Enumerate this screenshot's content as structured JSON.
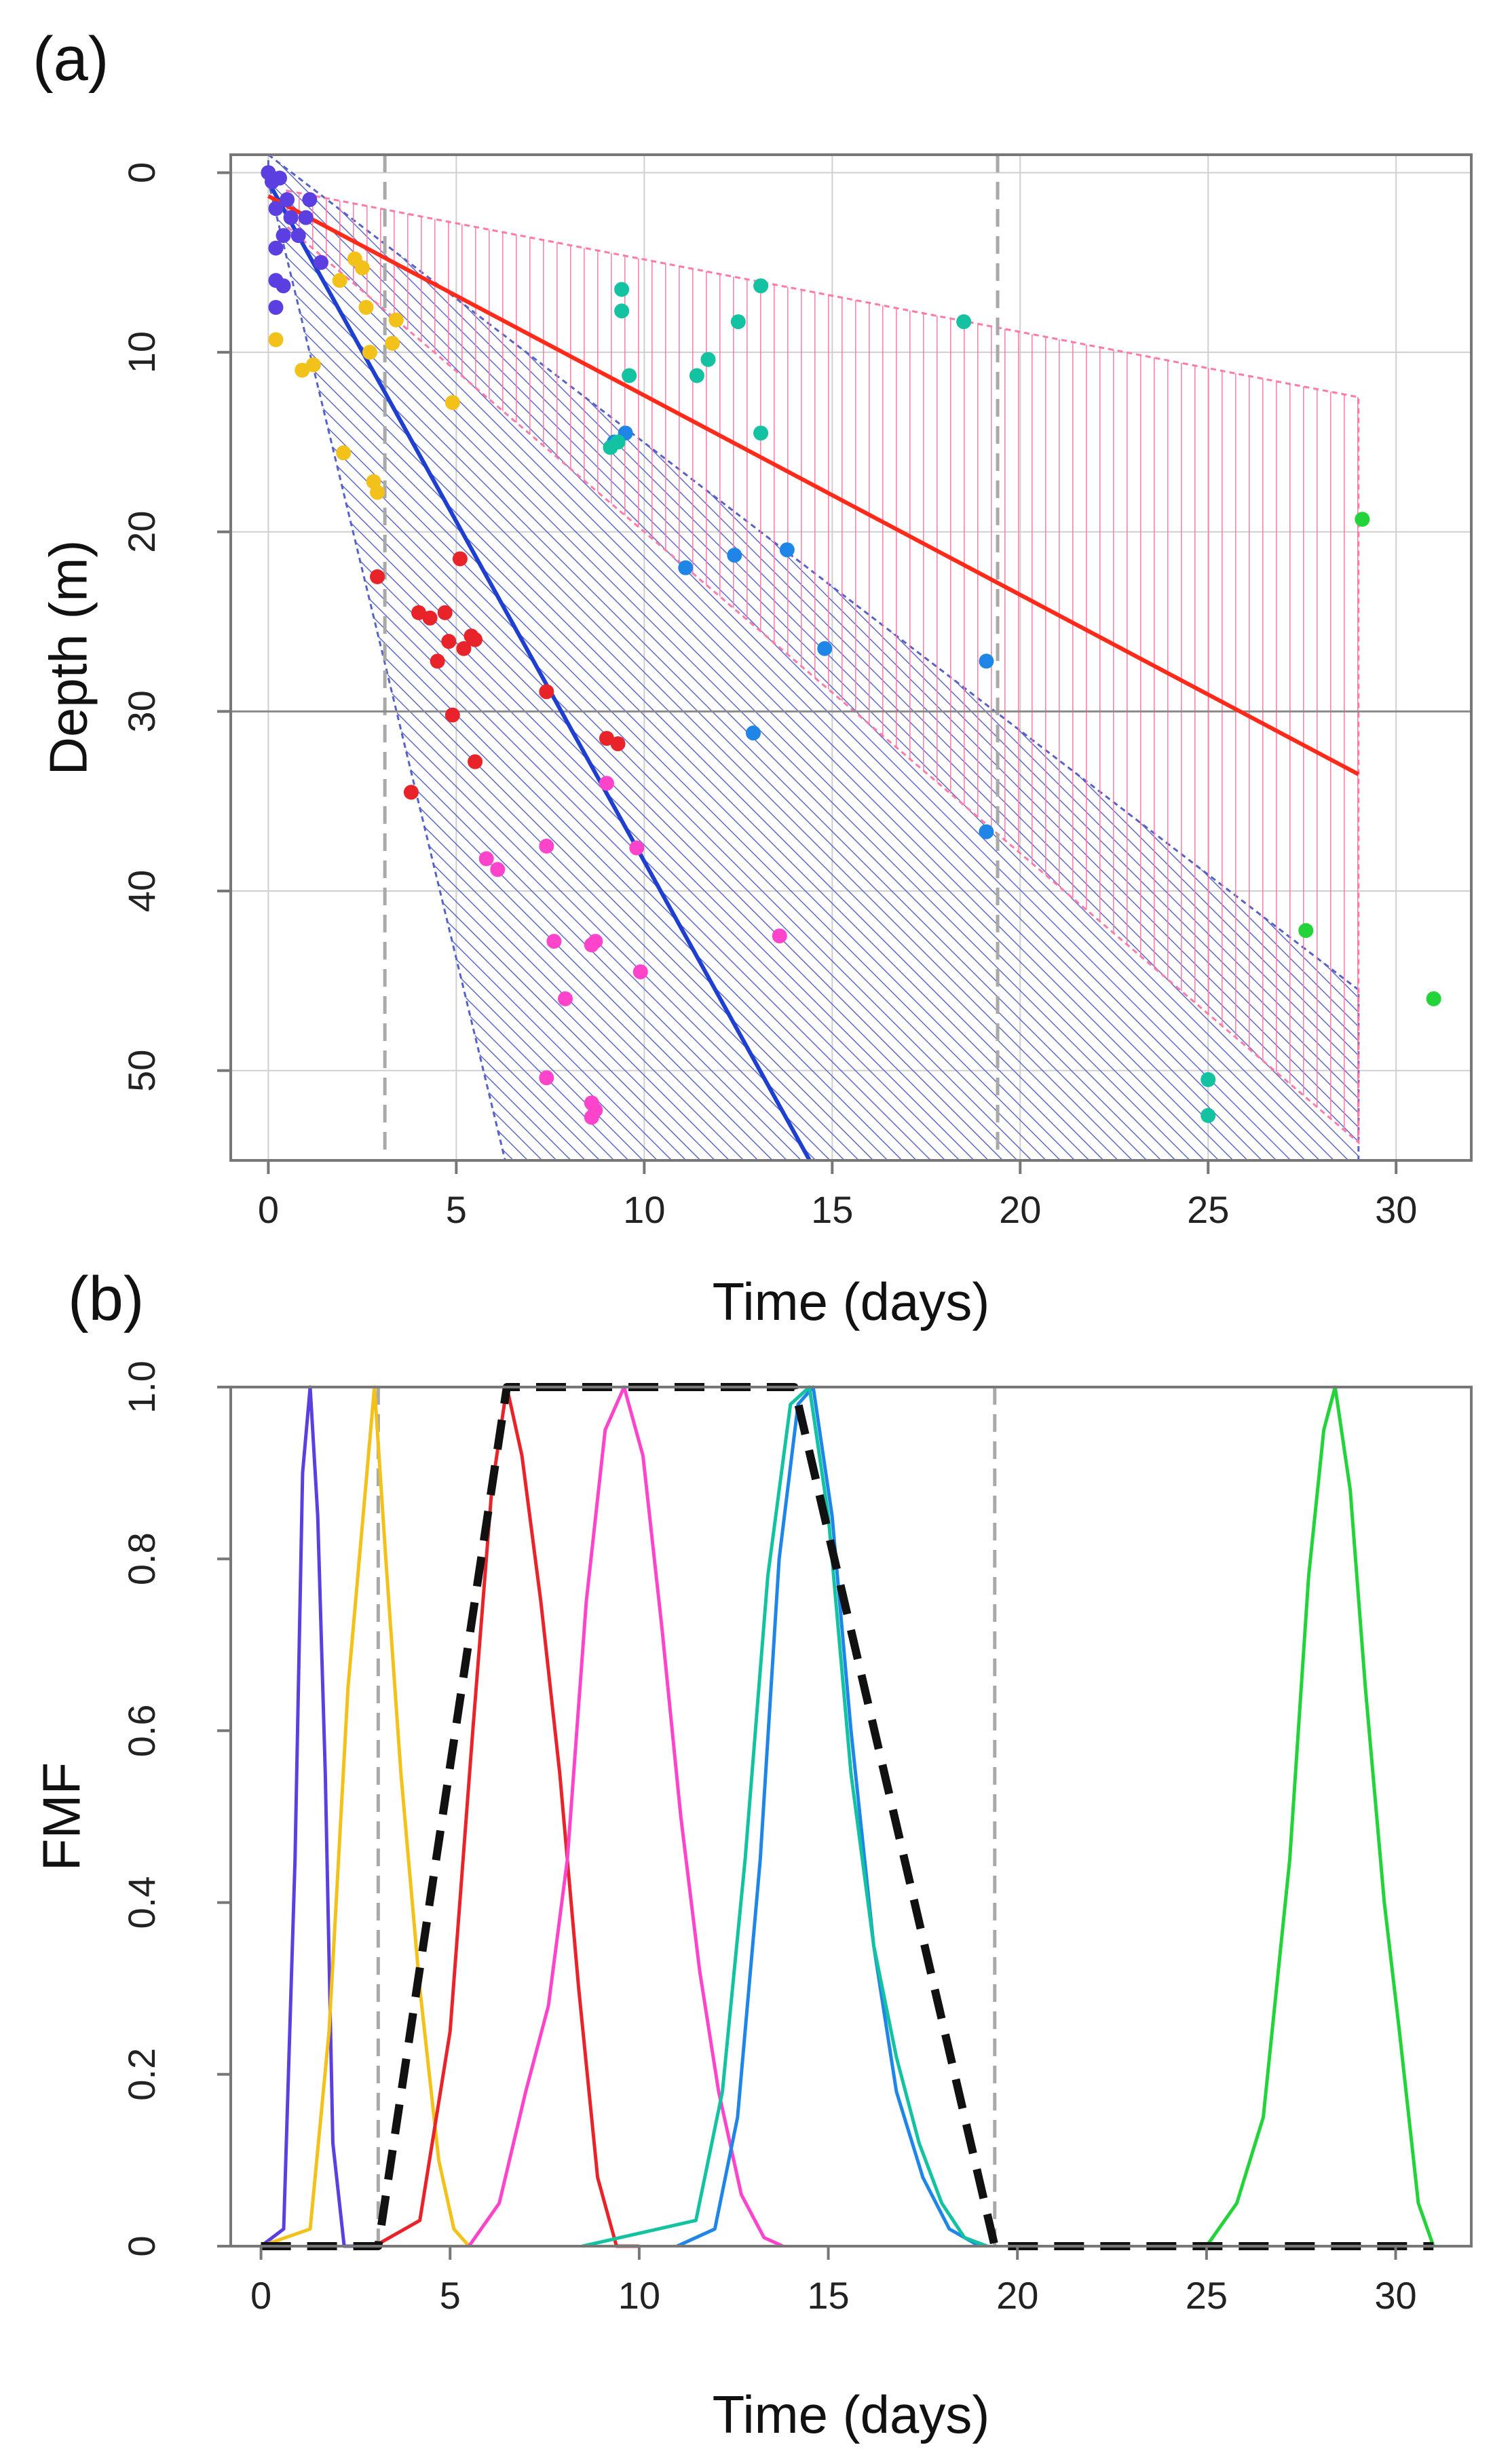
{
  "figure": {
    "panel_a_label": "(a)",
    "panel_b_label": "(b)"
  },
  "colors": {
    "blue_line": "#1f3fd0",
    "red_line": "#ff2a1a",
    "blue_hatch": "#5563c8",
    "pink_hatch": "#ff7aa8",
    "purple": "#5b3fe0",
    "gold": "#f2c21a",
    "red": "#e8242a",
    "magenta": "#ff44cc",
    "blue": "#1f86e8",
    "teal": "#13c2a0",
    "green": "#22d43a",
    "grid": "#cfcfcf",
    "dashed_ref": "#a9a9a9",
    "axis": "#777777",
    "envelope": "#111111"
  },
  "chart_data": [
    {
      "type": "scatter",
      "panel": "(a)",
      "xlabel": "Time (days)",
      "ylabel": "Depth (m)",
      "xlim": [
        -1,
        32
      ],
      "ylim": [
        55,
        -1
      ],
      "xticks": [
        0,
        5,
        10,
        15,
        20,
        25,
        30
      ],
      "yticks": [
        0,
        10,
        20,
        30,
        40,
        50
      ],
      "vertical_reference_lines": [
        3.1,
        19.4
      ],
      "horizontal_reference_line": 30,
      "fit_lines": [
        {
          "name": "blue-fit",
          "color": "blue_line",
          "points": [
            [
              0,
              0.5
            ],
            [
              14.4,
              55
            ]
          ]
        },
        {
          "name": "red-fit",
          "color": "red_line",
          "points": [
            [
              0,
              1.3
            ],
            [
              29,
              33.5
            ]
          ]
        }
      ],
      "bands": [
        {
          "name": "blue-band",
          "color": "blue_hatch",
          "hatch": "diagonal",
          "polygon": [
            [
              0,
              -1
            ],
            [
              29,
              45.5
            ],
            [
              29,
              55
            ],
            [
              6.3,
              55
            ],
            [
              0,
              0.5
            ]
          ]
        },
        {
          "name": "pink-band",
          "color": "pink_hatch",
          "hatch": "vertical",
          "polygon": [
            [
              0.5,
              1
            ],
            [
              29,
              12.5
            ],
            [
              29,
              54
            ],
            [
              0.5,
              3
            ]
          ]
        }
      ],
      "series": [
        {
          "name": "purple",
          "color": "purple",
          "points": [
            [
              0,
              0
            ],
            [
              0.1,
              0.5
            ],
            [
              0.3,
              0.3
            ],
            [
              0.5,
              1.5
            ],
            [
              0.2,
              2
            ],
            [
              0.6,
              2.5
            ],
            [
              1.1,
              1.5
            ],
            [
              1,
              2.5
            ],
            [
              0.4,
              3.5
            ],
            [
              0.8,
              3.5
            ],
            [
              0.2,
              4.2
            ],
            [
              1.4,
              5
            ],
            [
              0.2,
              6
            ],
            [
              0.4,
              6.3
            ],
            [
              0.2,
              7.5
            ]
          ]
        },
        {
          "name": "gold",
          "color": "gold",
          "points": [
            [
              0.2,
              9.3
            ],
            [
              2.3,
              4.8
            ],
            [
              2.5,
              5.3
            ],
            [
              1.9,
              6
            ],
            [
              2.6,
              7.5
            ],
            [
              3.4,
              8.2
            ],
            [
              3.3,
              9.5
            ],
            [
              2.7,
              10
            ],
            [
              1.2,
              10.7
            ],
            [
              0.9,
              11
            ],
            [
              4.9,
              12.8
            ],
            [
              2,
              15.6
            ],
            [
              2.8,
              17.2
            ],
            [
              2.9,
              17.8
            ]
          ]
        },
        {
          "name": "red",
          "color": "red",
          "points": [
            [
              2.9,
              22.5
            ],
            [
              5.1,
              21.5
            ],
            [
              4,
              24.5
            ],
            [
              4.3,
              24.8
            ],
            [
              4.7,
              24.5
            ],
            [
              5.4,
              25.8
            ],
            [
              5.2,
              26.5
            ],
            [
              4.8,
              26.1
            ],
            [
              4.5,
              27.2
            ],
            [
              5.5,
              26
            ],
            [
              7.4,
              28.9
            ],
            [
              5.5,
              32.8
            ],
            [
              9,
              31.5
            ],
            [
              9.3,
              31.8
            ],
            [
              3.8,
              34.5
            ],
            [
              4.9,
              30.2
            ]
          ]
        },
        {
          "name": "magenta",
          "color": "magenta",
          "points": [
            [
              7.4,
              37.5
            ],
            [
              6.1,
              38.8
            ],
            [
              5.8,
              38.2
            ],
            [
              9.8,
              37.6
            ],
            [
              9,
              34
            ],
            [
              7.6,
              42.8
            ],
            [
              8.6,
              43
            ],
            [
              8.7,
              42.8
            ],
            [
              7.9,
              46
            ],
            [
              13.6,
              42.5
            ],
            [
              9.9,
              44.5
            ],
            [
              7.4,
              50.4
            ],
            [
              8.6,
              51.8
            ],
            [
              8.6,
              52.6
            ],
            [
              8.7,
              52.2
            ]
          ]
        },
        {
          "name": "blue",
          "color": "blue",
          "points": [
            [
              11.1,
              22
            ],
            [
              12.4,
              21.3
            ],
            [
              13.8,
              21
            ],
            [
              14.8,
              26.5
            ],
            [
              19.1,
              27.2
            ],
            [
              12.9,
              31.2
            ],
            [
              19.1,
              36.7
            ],
            [
              9.5,
              14.5
            ],
            [
              9.2,
              15
            ]
          ]
        },
        {
          "name": "teal",
          "color": "teal",
          "points": [
            [
              9.4,
              6.5
            ],
            [
              9.4,
              7.7
            ],
            [
              13.1,
              6.3
            ],
            [
              12.5,
              8.3
            ],
            [
              18.5,
              8.3
            ],
            [
              11.7,
              10.4
            ],
            [
              11.4,
              11.3
            ],
            [
              9.6,
              11.3
            ],
            [
              13.1,
              14.5
            ],
            [
              9.3,
              15
            ],
            [
              9.1,
              15.3
            ],
            [
              25,
              50.5
            ],
            [
              25,
              52.5
            ]
          ]
        },
        {
          "name": "green",
          "color": "green",
          "points": [
            [
              29.1,
              19.3
            ],
            [
              31,
              46
            ],
            [
              27.6,
              42.2
            ]
          ]
        }
      ]
    },
    {
      "type": "line",
      "panel": "(b)",
      "xlabel": "Time (days)",
      "ylabel": "FMF",
      "xlim": [
        -0.8,
        32
      ],
      "ylim": [
        0,
        1
      ],
      "xticks": [
        0,
        5,
        10,
        15,
        20,
        25,
        30
      ],
      "yticks": [
        0,
        0.2,
        0.4,
        0.6,
        0.8,
        1.0
      ],
      "ytick_labels": [
        "0",
        "0.2",
        "0.4",
        "0.6",
        "0.8",
        "1.0"
      ],
      "vertical_reference_lines": [
        3.1,
        19.4
      ],
      "series": [
        {
          "name": "purple",
          "color": "purple",
          "x": [
            0,
            0.6,
            0.9,
            1.1,
            1.3,
            1.5,
            1.7,
            1.9,
            2.2,
            3
          ],
          "y": [
            0,
            0.02,
            0.45,
            0.9,
            1.0,
            0.85,
            0.55,
            0.12,
            0,
            0
          ]
        },
        {
          "name": "gold",
          "color": "gold",
          "x": [
            0,
            1.3,
            1.8,
            2.3,
            2.7,
            3.0,
            3.3,
            3.7,
            4.2,
            4.7,
            5.1,
            5.5
          ],
          "y": [
            0,
            0.02,
            0.25,
            0.65,
            0.85,
            1.0,
            0.8,
            0.55,
            0.3,
            0.1,
            0.02,
            0
          ]
        },
        {
          "name": "red",
          "color": "red",
          "x": [
            3,
            4.2,
            5,
            5.6,
            6.1,
            6.5,
            6.9,
            7.4,
            7.9,
            8.4,
            8.9,
            9.4,
            10
          ],
          "y": [
            0,
            0.03,
            0.25,
            0.6,
            0.88,
            1.0,
            0.92,
            0.75,
            0.55,
            0.3,
            0.08,
            0,
            0
          ]
        },
        {
          "name": "magenta",
          "color": "magenta",
          "x": [
            5.5,
            6.3,
            7,
            7.6,
            8.1,
            8.6,
            9.1,
            9.6,
            10.1,
            10.6,
            11.1,
            11.6,
            12.1,
            12.7,
            13.3,
            13.8
          ],
          "y": [
            0,
            0.05,
            0.18,
            0.28,
            0.45,
            0.75,
            0.95,
            1.0,
            0.92,
            0.72,
            0.5,
            0.32,
            0.18,
            0.06,
            0.01,
            0
          ]
        },
        {
          "name": "blue",
          "color": "blue",
          "x": [
            11,
            12,
            12.6,
            13.2,
            13.7,
            14.2,
            14.6,
            15.1,
            15.6,
            16.2,
            16.8,
            17.5,
            18.2,
            19
          ],
          "y": [
            0,
            0.02,
            0.15,
            0.45,
            0.8,
            0.98,
            1.0,
            0.85,
            0.6,
            0.35,
            0.18,
            0.08,
            0.02,
            0
          ]
        },
        {
          "name": "teal",
          "color": "teal",
          "x": [
            8.5,
            9.5,
            10.5,
            11.5,
            12.2,
            12.8,
            13.4,
            14,
            14.5,
            15,
            15.6,
            16.2,
            16.8,
            17.4,
            18,
            18.6,
            19.2
          ],
          "y": [
            0,
            0.01,
            0.02,
            0.03,
            0.18,
            0.45,
            0.78,
            0.98,
            1.0,
            0.85,
            0.55,
            0.35,
            0.22,
            0.12,
            0.05,
            0.01,
            0
          ]
        },
        {
          "name": "green",
          "color": "green",
          "x": [
            25,
            25.8,
            26.5,
            27.2,
            27.7,
            28.1,
            28.4,
            28.8,
            29.2,
            29.7,
            30.1,
            30.6,
            31
          ],
          "y": [
            0,
            0.05,
            0.15,
            0.45,
            0.78,
            0.95,
            1.0,
            0.88,
            0.65,
            0.4,
            0.25,
            0.05,
            0
          ]
        },
        {
          "name": "envelope",
          "color": "envelope",
          "dashed": true,
          "x": [
            0,
            3.1,
            6.5,
            14.1,
            19.4,
            31
          ],
          "y": [
            0,
            0,
            1,
            1,
            0,
            0
          ]
        }
      ]
    }
  ]
}
